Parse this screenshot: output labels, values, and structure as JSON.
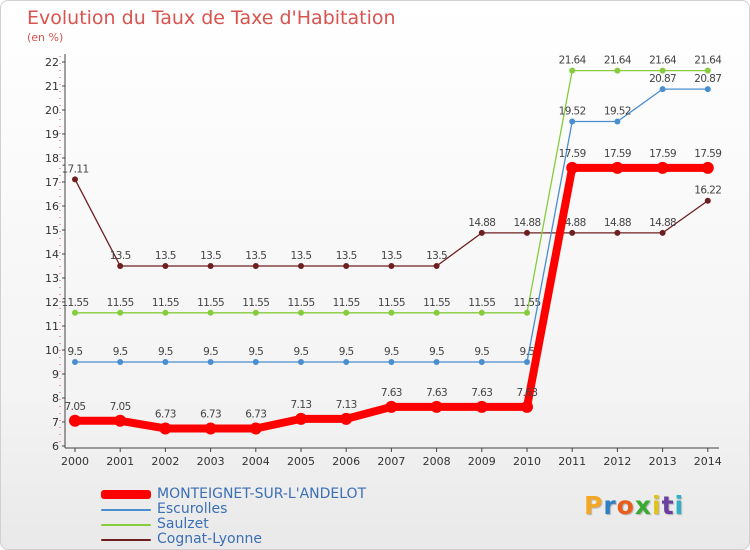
{
  "chart_data": {
    "type": "line",
    "title": "Evolution du Taux de Taxe d'Habitation",
    "subtitle": "(en %)",
    "x": [
      "2000",
      "2001",
      "2002",
      "2003",
      "2004",
      "2005",
      "2006",
      "2007",
      "2008",
      "2009",
      "2010",
      "2011",
      "2012",
      "2013",
      "2014"
    ],
    "ylim": [
      6,
      22
    ],
    "yticks": [
      6,
      7,
      8,
      9,
      10,
      11,
      12,
      13,
      14,
      15,
      16,
      17,
      18,
      19,
      20,
      21,
      22
    ],
    "grid": false,
    "legend_position": "bottom-left",
    "series": [
      {
        "name": "Cognat-Lyonne",
        "color": "#6e1f1f",
        "width": 1.3,
        "values": [
          17.11,
          13.5,
          13.5,
          13.5,
          13.5,
          13.5,
          13.5,
          13.5,
          13.5,
          14.88,
          14.88,
          14.88,
          14.88,
          14.88,
          16.22
        ],
        "labels": [
          "17.11",
          "13.5",
          "13.5",
          "13.5",
          "13.5",
          "13.5",
          "13.5",
          "13.5",
          "13.5",
          "14.88",
          "14.88",
          "14.88",
          "14.88",
          "14.88",
          "16.22"
        ]
      },
      {
        "name": "Saulzet",
        "color": "#86cc3c",
        "width": 1.3,
        "values": [
          11.55,
          11.55,
          11.55,
          11.55,
          11.55,
          11.55,
          11.55,
          11.55,
          11.55,
          11.55,
          11.55,
          21.64,
          21.64,
          21.64,
          21.64
        ],
        "labels": [
          "11.55",
          "11.55",
          "11.55",
          "11.55",
          "11.55",
          "11.55",
          "11.55",
          "11.55",
          "11.55",
          "11.55",
          "11.55",
          "21.64",
          "21.64",
          "21.64",
          "21.64"
        ]
      },
      {
        "name": "Escurolles",
        "color": "#4a8ed0",
        "width": 1.3,
        "values": [
          9.5,
          9.5,
          9.5,
          9.5,
          9.5,
          9.5,
          9.5,
          9.5,
          9.5,
          9.5,
          9.5,
          19.52,
          19.52,
          20.87,
          20.87
        ],
        "labels": [
          "9.5",
          "9.5",
          "9.5",
          "9.5",
          "9.5",
          "9.5",
          "9.5",
          "9.5",
          "9.5",
          "9.5",
          "9.5",
          "19.52",
          "19.52",
          "20.87",
          "20.87"
        ]
      },
      {
        "name": "MONTEIGNET-SUR-L'ANDELOT",
        "color": "#ff0000",
        "width": 8,
        "values": [
          7.05,
          7.05,
          6.73,
          6.73,
          6.73,
          7.13,
          7.13,
          7.63,
          7.63,
          7.63,
          7.63,
          17.59,
          17.59,
          17.59,
          17.59
        ],
        "labels": [
          "7.05",
          "7.05",
          "6.73",
          "6.73",
          "6.73",
          "7.13",
          "7.13",
          "7.63",
          "7.63",
          "7.63",
          "7.63",
          "17.59",
          "17.59",
          "17.59",
          "17.59"
        ]
      }
    ],
    "legend_order": [
      "MONTEIGNET-SUR-L'ANDELOT",
      "Escurolles",
      "Saulzet",
      "Cognat-Lyonne"
    ]
  },
  "logo": {
    "text": "Proxiti",
    "letter_colors": [
      "#f5a623",
      "#2f7fc1",
      "#e85d1a",
      "#3aaa35",
      "#e0c21a",
      "#6a3fa0",
      "#2fb0c9"
    ]
  }
}
